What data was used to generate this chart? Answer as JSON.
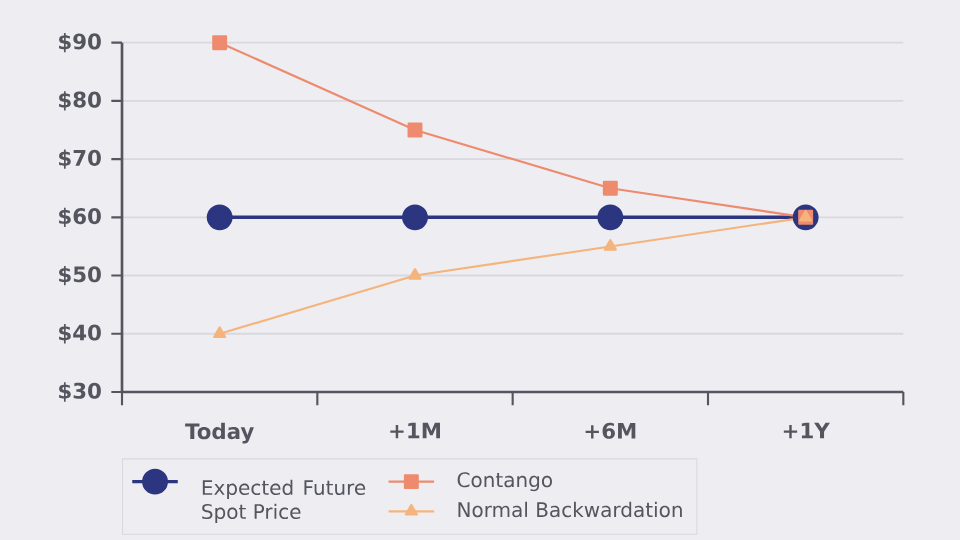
{
  "chart_data": {
    "type": "line",
    "categories": [
      "Today",
      "+1M",
      "+6M",
      "+1Y"
    ],
    "series": [
      {
        "name": "Expected Future Spot Price",
        "color": "#2b3580",
        "marker": "circle",
        "values": [
          60,
          60,
          60,
          60
        ]
      },
      {
        "name": "Contango",
        "color": "#ee8a6e",
        "marker": "square",
        "values": [
          90,
          75,
          65,
          60
        ]
      },
      {
        "name": "Normal Backwardation",
        "color": "#f4b47c",
        "marker": "triangle",
        "values": [
          40,
          50,
          55,
          60
        ]
      }
    ],
    "ylim": [
      30,
      90
    ],
    "yticks": [
      {
        "value": 30,
        "label": "$30"
      },
      {
        "value": 40,
        "label": "$40"
      },
      {
        "value": 50,
        "label": "$50"
      },
      {
        "value": 60,
        "label": "$60"
      },
      {
        "value": 70,
        "label": "$70"
      },
      {
        "value": 80,
        "label": "$80"
      },
      {
        "value": 90,
        "label": "$90"
      }
    ],
    "grid": "y",
    "legend": "bottom left"
  }
}
